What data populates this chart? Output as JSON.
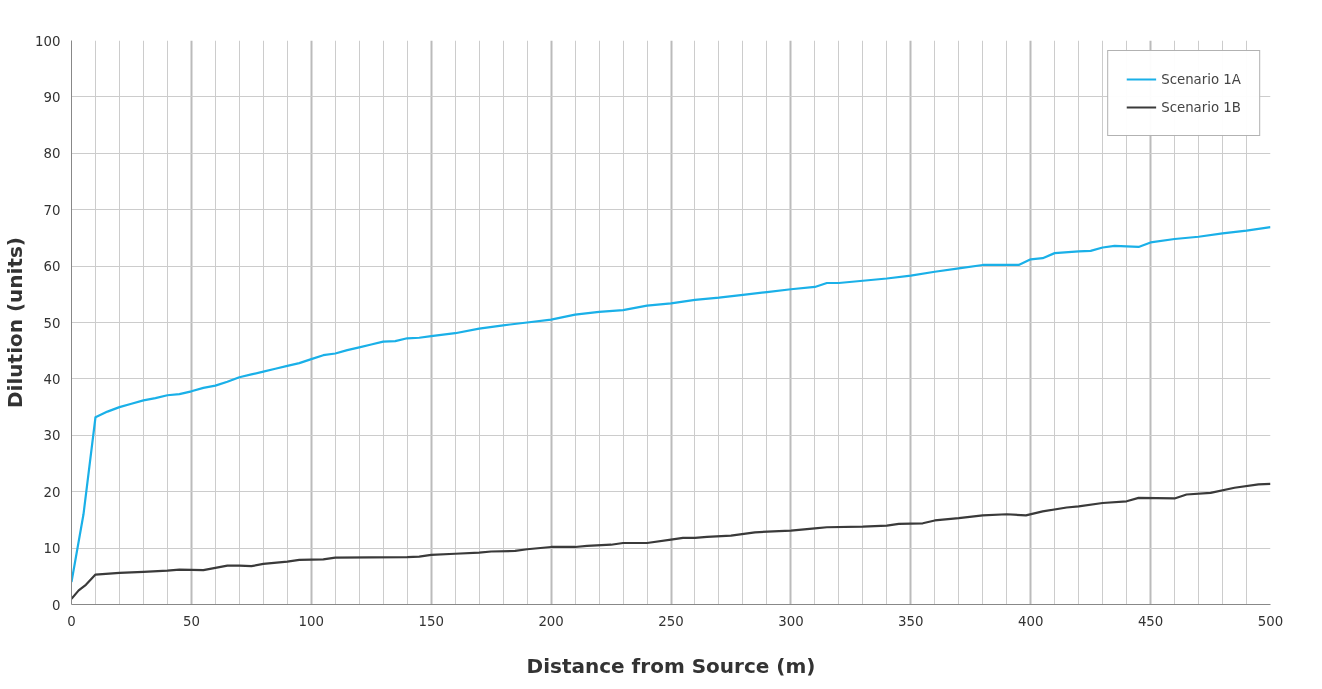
{
  "chart_data": {
    "type": "line",
    "xlabel": "Distance from Source (m)",
    "ylabel": "Dilution (units)",
    "xlim": [
      0,
      500
    ],
    "xticks": [
      0,
      50,
      100,
      150,
      200,
      250,
      300,
      350,
      400,
      450,
      500
    ],
    "ylim": [
      0,
      100
    ],
    "yticks": [
      0,
      10,
      20,
      30,
      40,
      50,
      60,
      70,
      80,
      90,
      100
    ],
    "grid": true,
    "legend": "top right",
    "marker": "none",
    "line_style": "solid",
    "series": [
      {
        "name": "Scenario 1A",
        "color": "#1ab0e8",
        "x": [
          0,
          5,
          10,
          15,
          20,
          25,
          30,
          35,
          40,
          45,
          50,
          55,
          60,
          65,
          70,
          75,
          80,
          85,
          90,
          95,
          100,
          105,
          110,
          115,
          120,
          125,
          130,
          135,
          140,
          145,
          150,
          160,
          170,
          180,
          190,
          200,
          210,
          220,
          230,
          240,
          250,
          260,
          270,
          280,
          290,
          300,
          310,
          315,
          320,
          330,
          340,
          350,
          360,
          370,
          380,
          390,
          395,
          400,
          405,
          410,
          420,
          425,
          430,
          435,
          445,
          450,
          460,
          470,
          480,
          490,
          500
        ],
        "values": [
          4,
          16,
          33.2,
          34.2,
          35,
          35.6,
          36.2,
          36.6,
          37.1,
          37.3,
          37.8,
          38.4,
          38.8,
          39.5,
          40.3,
          40.8,
          41.3,
          41.8,
          42.3,
          42.8,
          43.5,
          44.2,
          44.5,
          45.1,
          45.6,
          46.1,
          46.6,
          46.7,
          47.2,
          47.3,
          47.6,
          48.1,
          48.9,
          49.5,
          50,
          50.5,
          51.4,
          51.9,
          52.2,
          53,
          53.4,
          54,
          54.4,
          54.9,
          55.4,
          55.9,
          56.3,
          57,
          57,
          57.4,
          57.8,
          58.3,
          59,
          59.6,
          60.2,
          60.2,
          60.2,
          61.2,
          61.4,
          62.3,
          62.6,
          62.7,
          63.3,
          63.6,
          63.4,
          64.2,
          64.8,
          65.2,
          65.8,
          66.3,
          66.9
        ]
      },
      {
        "name": "Scenario 1B",
        "color": "#3a3a3a",
        "x": [
          0,
          3,
          6,
          10,
          20,
          30,
          40,
          45,
          55,
          60,
          65,
          70,
          75,
          80,
          90,
          95,
          105,
          110,
          140,
          145,
          150,
          160,
          170,
          175,
          185,
          190,
          200,
          210,
          215,
          225,
          230,
          240,
          250,
          255,
          260,
          265,
          275,
          285,
          295,
          300,
          310,
          315,
          330,
          340,
          345,
          355,
          360,
          370,
          380,
          390,
          398,
          405,
          415,
          420,
          430,
          440,
          445,
          460,
          465,
          475,
          485,
          495,
          500
        ],
        "values": [
          1,
          2.5,
          3.5,
          5.3,
          5.6,
          5.8,
          6,
          6.2,
          6.1,
          6.5,
          6.9,
          6.9,
          6.8,
          7.2,
          7.6,
          7.9,
          8,
          8.3,
          8.4,
          8.5,
          8.8,
          9,
          9.2,
          9.4,
          9.5,
          9.8,
          10.2,
          10.2,
          10.4,
          10.6,
          10.9,
          10.9,
          11.5,
          11.8,
          11.8,
          12,
          12.2,
          12.8,
          13,
          13.1,
          13.5,
          13.7,
          13.8,
          14,
          14.3,
          14.4,
          14.9,
          15.3,
          15.8,
          16,
          15.8,
          16.5,
          17.2,
          17.4,
          18,
          18.3,
          18.9,
          18.8,
          19.5,
          19.8,
          20.7,
          21.3,
          21.4
        ]
      }
    ]
  }
}
